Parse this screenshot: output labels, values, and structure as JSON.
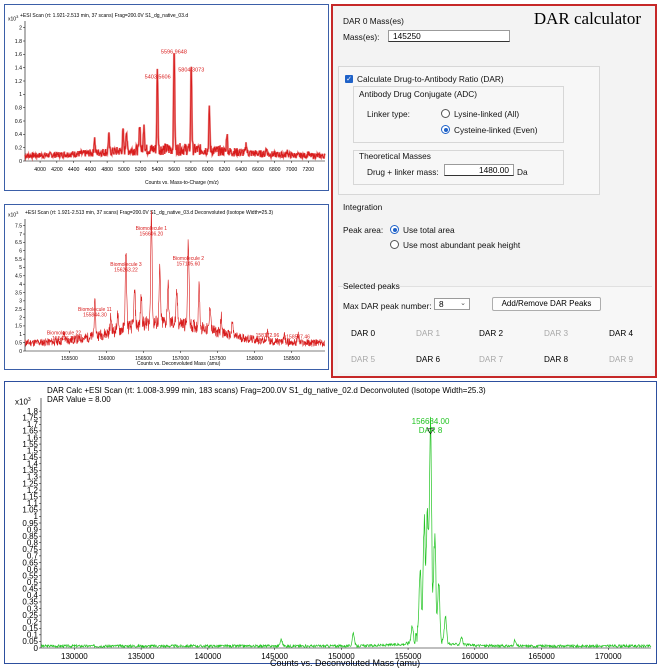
{
  "panel": {
    "title": "DAR calculator",
    "dar0_group": "DAR 0 Mass(es)",
    "mass_label": "Mass(es):",
    "mass_value": "145250",
    "calc_checkbox_label": "Calculate Drug-to-Antibody Ratio (DAR)",
    "adc_group": "Antibody Drug Conjugate (ADC)",
    "linker_label": "Linker type:",
    "linker_option_lysine": "Lysine-linked (All)",
    "linker_option_cysteine": "Cysteine-linked (Even)",
    "theo_group": "Theoretical Masses",
    "drug_mass_label": "Drug + linker mass:",
    "drug_mass_value": "1480.00",
    "drug_mass_unit": "Da",
    "integration_group": "Integration",
    "peak_area_label": "Peak area:",
    "peak_option_total": "Use total area",
    "peak_option_abundant": "Use most abundant peak height",
    "selected_group": "Selected peaks",
    "max_dar_label": "Max DAR peak number:",
    "max_dar_value": "8",
    "add_remove_button": "Add/Remove DAR Peaks",
    "dar_labels": [
      "DAR 0",
      "DAR 1",
      "DAR 2",
      "DAR 3",
      "DAR 4",
      "DAR 5",
      "DAR 6",
      "DAR 7",
      "DAR 8",
      "DAR 9"
    ],
    "dar_enabled": [
      true,
      false,
      true,
      false,
      true,
      false,
      true,
      false,
      true,
      false
    ]
  },
  "colors": {
    "panel_border": "#c62828",
    "red_trace": "#d81b1b",
    "green_trace": "#22c422",
    "accent": "#1f62c8"
  },
  "chart_data": [
    {
      "type": "line",
      "title": "+ESI Scan (rt: 1.921-2.513 min, 37 scans) Frag=200.0V S1_dg_native_03.d",
      "multiplier": "x10",
      "multiplier_exp": "3",
      "xlabel": "Counts vs. Mass-to-Charge (m/z)",
      "xlim": [
        3820,
        7400
      ],
      "ylim": [
        0,
        2.1
      ],
      "xticks": [
        4000,
        4200,
        4400,
        4600,
        4800,
        5000,
        5200,
        5400,
        5600,
        5800,
        6000,
        6200,
        6400,
        6600,
        6800,
        7000,
        7200
      ],
      "yticks": [
        0,
        0.2,
        0.4,
        0.6,
        0.8,
        1,
        1.2,
        1.4,
        1.6,
        1.8,
        2
      ],
      "ytick_labels": [
        "0",
        "0.2",
        "0.4",
        "0.6",
        "0.8",
        "1",
        "1.2",
        "1.4",
        "1.6",
        "1.8",
        "2"
      ],
      "peaks": [
        {
          "x": 4650,
          "y": 0.22
        },
        {
          "x": 4820,
          "y": 0.26
        },
        {
          "x": 4990,
          "y": 0.3
        },
        {
          "x": 5030,
          "y": 0.32
        },
        {
          "x": 5190,
          "y": 0.4
        },
        {
          "x": 5240,
          "y": 0.42
        },
        {
          "x": 5400,
          "y": 1.18
        },
        {
          "x": 5600,
          "y": 1.55
        },
        {
          "x": 5804,
          "y": 1.28
        },
        {
          "x": 6020,
          "y": 0.6
        },
        {
          "x": 6230,
          "y": 0.28
        },
        {
          "x": 6460,
          "y": 0.14
        },
        {
          "x": 6700,
          "y": 0.1
        },
        {
          "x": 6950,
          "y": 0.07
        },
        {
          "x": 7200,
          "y": 0.05
        }
      ],
      "labels": [
        {
          "text": "5403.5606",
          "x": 5403,
          "y": 1.18
        },
        {
          "text": "5596.9648",
          "x": 5597,
          "y": 1.55
        },
        {
          "text": "5804.3073",
          "x": 5804,
          "y": 1.28
        }
      ]
    },
    {
      "type": "line",
      "title": "+ESI Scan (rt: 1.921-2.513 min, 37 scans) Frag=200.0V S1_dg_native_03.d  Deconvoluted (Isotope Width=25.3)",
      "multiplier": "x10",
      "multiplier_exp": "3",
      "xlabel": "Counts vs. Deconvoluted Mass (amu)",
      "xlim": [
        154900,
        158950
      ],
      "ylim": [
        0,
        7.9
      ],
      "xticks": [
        155500,
        156000,
        156500,
        157000,
        157500,
        158000,
        158500
      ],
      "yticks": [
        0,
        0.5,
        1,
        1.5,
        2,
        2.5,
        3,
        3.5,
        4,
        4.5,
        5,
        5.5,
        6,
        6.5,
        7,
        7.5
      ],
      "ytick_labels": [
        "0",
        "0.5",
        "1",
        "1.5",
        "2",
        "2.5",
        "3",
        "3.5",
        "4",
        "4.5",
        "5",
        "5.5",
        "6",
        "6.5",
        "7",
        "7.5"
      ],
      "peaks": [
        {
          "x": 155426,
          "y": 0.55
        },
        {
          "x": 155844,
          "y": 1.95
        },
        {
          "x": 156060,
          "y": 0.9
        },
        {
          "x": 156150,
          "y": 0.9
        },
        {
          "x": 156263,
          "y": 4.65
        },
        {
          "x": 156380,
          "y": 2.1
        },
        {
          "x": 156470,
          "y": 1.7
        },
        {
          "x": 156606,
          "y": 6.8
        },
        {
          "x": 156720,
          "y": 3.1
        },
        {
          "x": 156830,
          "y": 2.3
        },
        {
          "x": 156950,
          "y": 1.8
        },
        {
          "x": 157105,
          "y": 5.0
        },
        {
          "x": 157250,
          "y": 2.4
        },
        {
          "x": 157400,
          "y": 1.5
        },
        {
          "x": 157550,
          "y": 1.0
        },
        {
          "x": 157700,
          "y": 0.8
        },
        {
          "x": 158173,
          "y": 0.6
        },
        {
          "x": 158400,
          "y": 0.5
        },
        {
          "x": 158587,
          "y": 0.5
        }
      ],
      "labels": [
        {
          "text": "Biomolecule 22",
          "sub": "155426.30",
          "x": 155426,
          "y": 0.55
        },
        {
          "text": "Biomolecule 11",
          "sub": "155844.30",
          "x": 155844,
          "y": 1.95
        },
        {
          "text": "Biomolecule 3",
          "sub": "156263.22",
          "x": 156263,
          "y": 4.65
        },
        {
          "text": "Biomolecule 1",
          "sub": "156606.20",
          "x": 156606,
          "y": 6.8
        },
        {
          "text": "Biomolecule 2",
          "sub": "157105.60",
          "x": 157105,
          "y": 5.0
        },
        {
          "text": "158172.96",
          "sub": "",
          "x": 158173,
          "y": 0.6
        },
        {
          "text": "158587.46",
          "sub": "",
          "x": 158587,
          "y": 0.5
        }
      ]
    },
    {
      "type": "line",
      "title": "DAR Calc +ESI Scan (rt: 1.008-3.999 min, 183 scans) Frag=200.0V S1_dg_native_02.d  Deconvoluted (Isotope Width=25.3)",
      "subtitle": "DAR Value = 8.00",
      "multiplier": "x10",
      "multiplier_exp": "3",
      "xlabel": "Counts vs. Deconvoluted Mass (amu)",
      "xlim": [
        127500,
        173200
      ],
      "ylim": [
        0,
        1.9
      ],
      "xticks": [
        130000,
        135000,
        140000,
        145000,
        150000,
        155000,
        160000,
        165000,
        170000
      ],
      "xtick_labels": [
        "130000",
        "135000",
        "140000",
        "145000",
        "150000",
        "155000",
        "160000",
        "165000",
        "170000"
      ],
      "yticks": [
        0,
        0.05,
        0.1,
        0.15,
        0.2,
        0.25,
        0.3,
        0.35,
        0.4,
        0.45,
        0.5,
        0.55,
        0.6,
        0.65,
        0.7,
        0.75,
        0.8,
        0.85,
        0.9,
        0.95,
        1,
        1.05,
        1.1,
        1.15,
        1.2,
        1.25,
        1.3,
        1.35,
        1.4,
        1.45,
        1.5,
        1.55,
        1.6,
        1.65,
        1.7,
        1.75,
        1.8
      ],
      "ytick_labels": [
        "0",
        "0.05",
        "0.1",
        "0.15",
        "0.2",
        "0.25",
        "0.3",
        "0.35",
        "0.4",
        "0.45",
        "0.5",
        "0.55",
        "0.6",
        "0.65",
        "0.7",
        "0.75",
        "0.8",
        "0.85",
        "0.9",
        "0.95",
        "1",
        "1.05",
        "1.1",
        "1.15",
        "1.2",
        "1.25",
        "1.3",
        "1.35",
        "1.4",
        "1.45",
        "1.5",
        "1.55",
        "1.6",
        "1.65",
        "1.7",
        "1.75",
        "1.8"
      ],
      "peaks": [
        {
          "x": 145500,
          "y": 0.05
        },
        {
          "x": 150900,
          "y": 0.1
        },
        {
          "x": 155300,
          "y": 0.12
        },
        {
          "x": 155900,
          "y": 0.52
        },
        {
          "x": 156200,
          "y": 0.78
        },
        {
          "x": 156450,
          "y": 0.9
        },
        {
          "x": 156684,
          "y": 1.62
        },
        {
          "x": 157000,
          "y": 0.75
        },
        {
          "x": 157300,
          "y": 0.45
        },
        {
          "x": 157800,
          "y": 0.2
        },
        {
          "x": 159000,
          "y": 0.06
        },
        {
          "x": 163000,
          "y": 0.04
        }
      ],
      "labels": [
        {
          "text": "156684.00",
          "sub": "DAR 8",
          "x": 156684,
          "y": 1.62
        }
      ]
    }
  ]
}
